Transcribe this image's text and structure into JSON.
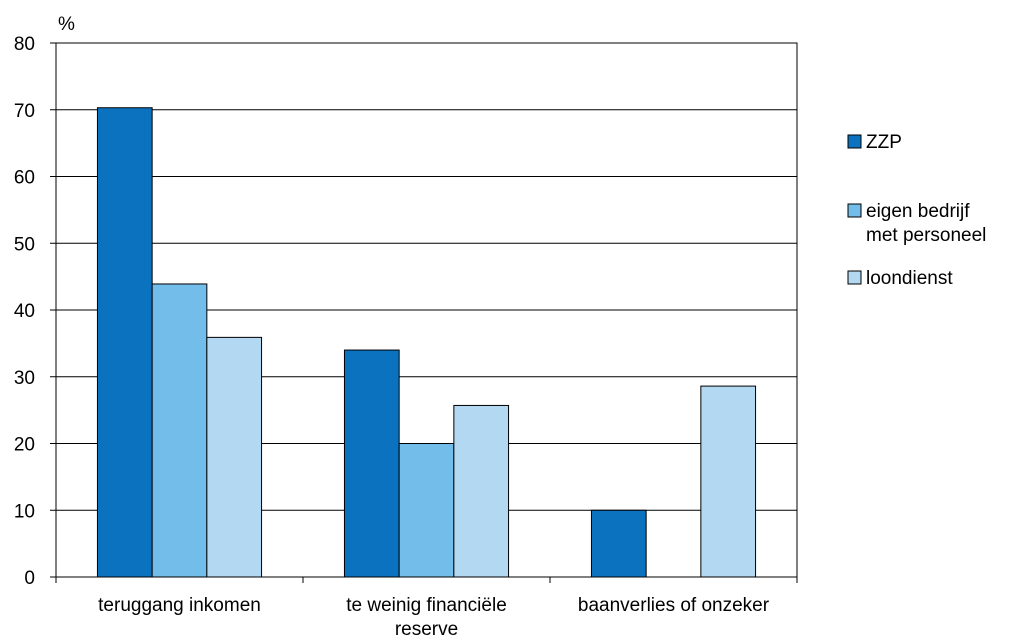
{
  "chart_data": {
    "type": "bar",
    "ylabel": "%",
    "ylim": [
      0,
      80
    ],
    "yticks": [
      0,
      10,
      20,
      30,
      40,
      50,
      60,
      70,
      80
    ],
    "grid": true,
    "legend_position": "right",
    "categories": [
      [
        "teruggang inkomen"
      ],
      [
        "te weinig financiële",
        "reserve"
      ],
      [
        "baanverlies of onzeker"
      ]
    ],
    "series": [
      {
        "name": "ZZP",
        "color": "#0a72bf",
        "values": [
          70.3,
          34.0,
          10.0
        ]
      },
      {
        "name": [
          "eigen bedrijf",
          "met personeel"
        ],
        "color": "#72bde9",
        "values": [
          43.9,
          20.0,
          null
        ]
      },
      {
        "name": "loondienst",
        "color": "#b3d8f2",
        "values": [
          35.9,
          25.7,
          28.6
        ]
      }
    ]
  }
}
